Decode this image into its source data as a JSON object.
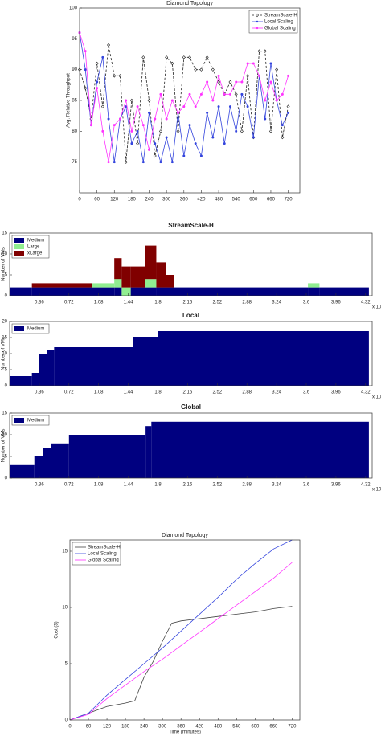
{
  "chart_data": [
    {
      "type": "line",
      "title": "Diamond Topology",
      "ylabel": "Avg. Relative Throughput",
      "x": [
        0,
        20,
        40,
        60,
        80,
        100,
        120,
        140,
        160,
        180,
        200,
        220,
        240,
        260,
        280,
        300,
        320,
        340,
        360,
        380,
        400,
        420,
        440,
        460,
        480,
        500,
        520,
        540,
        560,
        580,
        600,
        620,
        640,
        660,
        680,
        700,
        720
      ],
      "xlim": [
        0,
        760
      ],
      "xticks": [
        0,
        60,
        120,
        180,
        240,
        300,
        360,
        420,
        480,
        540,
        600,
        660,
        720
      ],
      "ylim": [
        70,
        100
      ],
      "yticks": [
        75,
        80,
        85,
        90,
        95,
        100
      ],
      "legend": "upper right",
      "series": [
        {
          "name": "StreamScale-H",
          "color": "#222222",
          "line_style": "dashed",
          "marker": "diamond",
          "values": [
            90,
            87,
            82,
            91,
            84,
            94,
            89,
            89,
            75,
            85,
            78,
            92,
            85,
            76,
            80,
            92,
            91,
            80,
            92,
            92,
            90,
            90,
            92,
            90,
            88,
            86,
            88,
            86,
            80,
            89,
            79,
            93,
            93,
            80,
            90,
            79,
            84
          ]
        },
        {
          "name": "Local Scaling",
          "color": "#3344dd",
          "line_style": "solid",
          "marker": "circle",
          "values": [
            96,
            90,
            81,
            88,
            92,
            82,
            75,
            82,
            84,
            78,
            80,
            75,
            83,
            78,
            75,
            79,
            75,
            83,
            76,
            81,
            78,
            76,
            83,
            79,
            84,
            78,
            84,
            80,
            86,
            84,
            79,
            89,
            82,
            91,
            85,
            81,
            83
          ]
        },
        {
          "name": "Global Scaling",
          "color": "#ff33ff",
          "line_style": "solid",
          "marker": "circle",
          "values": [
            96,
            93,
            81,
            87,
            80,
            75,
            81,
            82,
            85,
            80,
            84,
            81,
            77,
            82,
            86,
            82,
            85,
            83,
            84,
            86,
            84,
            86,
            88,
            85,
            89,
            86,
            86,
            88,
            88,
            91,
            91,
            89,
            85,
            88,
            85,
            86,
            89
          ]
        }
      ]
    },
    {
      "type": "histogram",
      "stacked": true,
      "title": "StreamScale-H",
      "ylabel": "Number of VMs",
      "x_scale_label": "x 10",
      "bins": [
        0,
        0.27,
        1.0,
        1.27,
        1.36,
        1.47,
        1.64,
        1.78,
        1.9,
        2.0,
        3.62,
        3.76,
        4.36
      ],
      "xlim": [
        0,
        4.4
      ],
      "xticks": [
        0.36,
        0.72,
        1.08,
        1.44,
        1.8,
        2.16,
        2.52,
        2.88,
        3.24,
        3.6,
        3.96,
        4.32
      ],
      "ylim": [
        0,
        15
      ],
      "yticks": [
        0,
        5,
        10,
        15
      ],
      "legend": "upper left",
      "series": [
        {
          "name": "Medium",
          "color": "#000080",
          "values": [
            2,
            2,
            2,
            2,
            0,
            2,
            2,
            2,
            2,
            2,
            2,
            2
          ]
        },
        {
          "name": "Large",
          "color": "#90ee90",
          "values": [
            0,
            0,
            1,
            2,
            2,
            0,
            2,
            0,
            0,
            0,
            1,
            0
          ]
        },
        {
          "name": "xLarge",
          "color": "#800000",
          "values": [
            0,
            1,
            0,
            5,
            5,
            5,
            8,
            6,
            3,
            0,
            0,
            0
          ]
        }
      ]
    },
    {
      "type": "histogram",
      "stacked": true,
      "title": "Local",
      "ylabel": "Number of VMs",
      "x_scale_label": "x 10",
      "bins": [
        0,
        0.27,
        0.36,
        0.45,
        0.54,
        1.5,
        1.8,
        4.36
      ],
      "xlim": [
        0,
        4.4
      ],
      "xticks": [
        0.36,
        0.72,
        1.08,
        1.44,
        1.8,
        2.16,
        2.52,
        2.88,
        3.24,
        3.6,
        3.96,
        4.32
      ],
      "ylim": [
        0,
        20
      ],
      "yticks": [
        0,
        5,
        10,
        15,
        20
      ],
      "legend": "upper left",
      "series": [
        {
          "name": "Medium",
          "color": "#000080",
          "values": [
            3,
            4,
            10,
            11,
            12,
            15,
            17
          ]
        }
      ]
    },
    {
      "type": "histogram",
      "stacked": true,
      "title": "Global",
      "ylabel": "Number of VMs",
      "x_scale_label": "x 10",
      "bins": [
        0,
        0.3,
        0.4,
        0.5,
        0.72,
        1.65,
        1.72,
        4.36
      ],
      "xlim": [
        0,
        4.4
      ],
      "xticks": [
        0.36,
        0.72,
        1.08,
        1.44,
        1.8,
        2.16,
        2.52,
        2.88,
        3.24,
        3.6,
        3.96,
        4.32
      ],
      "ylim": [
        0,
        15
      ],
      "yticks": [
        0,
        5,
        10,
        15
      ],
      "legend": "upper left",
      "series": [
        {
          "name": "Medium",
          "color": "#000080",
          "values": [
            3,
            5,
            7,
            8,
            10,
            12,
            13
          ]
        }
      ]
    },
    {
      "type": "line",
      "title": "Diamond Topology",
      "xlabel": "Time (minutes)",
      "ylabel": "Cost ($)",
      "xlim": [
        0,
        745
      ],
      "xticks": [
        0,
        60,
        120,
        180,
        240,
        300,
        360,
        420,
        480,
        540,
        600,
        660,
        720
      ],
      "ylim": [
        0,
        16
      ],
      "yticks": [
        0,
        5,
        10,
        15
      ],
      "legend": "upper left",
      "series": [
        {
          "name": "StreamScale-H",
          "color": "#444444",
          "line_style": "solid",
          "x": [
            0,
            60,
            120,
            180,
            210,
            240,
            270,
            300,
            330,
            360,
            420,
            480,
            540,
            600,
            660,
            720
          ],
          "values": [
            0,
            0.6,
            1.2,
            1.5,
            1.7,
            3.8,
            5.2,
            7.0,
            8.6,
            8.8,
            9.0,
            9.2,
            9.4,
            9.6,
            9.9,
            10.1
          ]
        },
        {
          "name": "Local Scaling",
          "color": "#3344dd",
          "line_style": "solid",
          "x": [
            0,
            60,
            120,
            180,
            240,
            300,
            360,
            420,
            480,
            540,
            600,
            660,
            720
          ],
          "values": [
            0,
            0.6,
            2.2,
            3.6,
            5.0,
            6.4,
            7.9,
            9.4,
            10.9,
            12.5,
            13.9,
            15.2,
            16
          ]
        },
        {
          "name": "Global Scaling",
          "color": "#ff33ff",
          "line_style": "solid",
          "x": [
            0,
            60,
            120,
            180,
            240,
            300,
            360,
            420,
            480,
            540,
            600,
            660,
            720
          ],
          "values": [
            0,
            0.5,
            1.9,
            3.1,
            4.3,
            5.4,
            6.6,
            7.8,
            9.0,
            10.2,
            11.4,
            12.6,
            14
          ]
        }
      ]
    }
  ]
}
